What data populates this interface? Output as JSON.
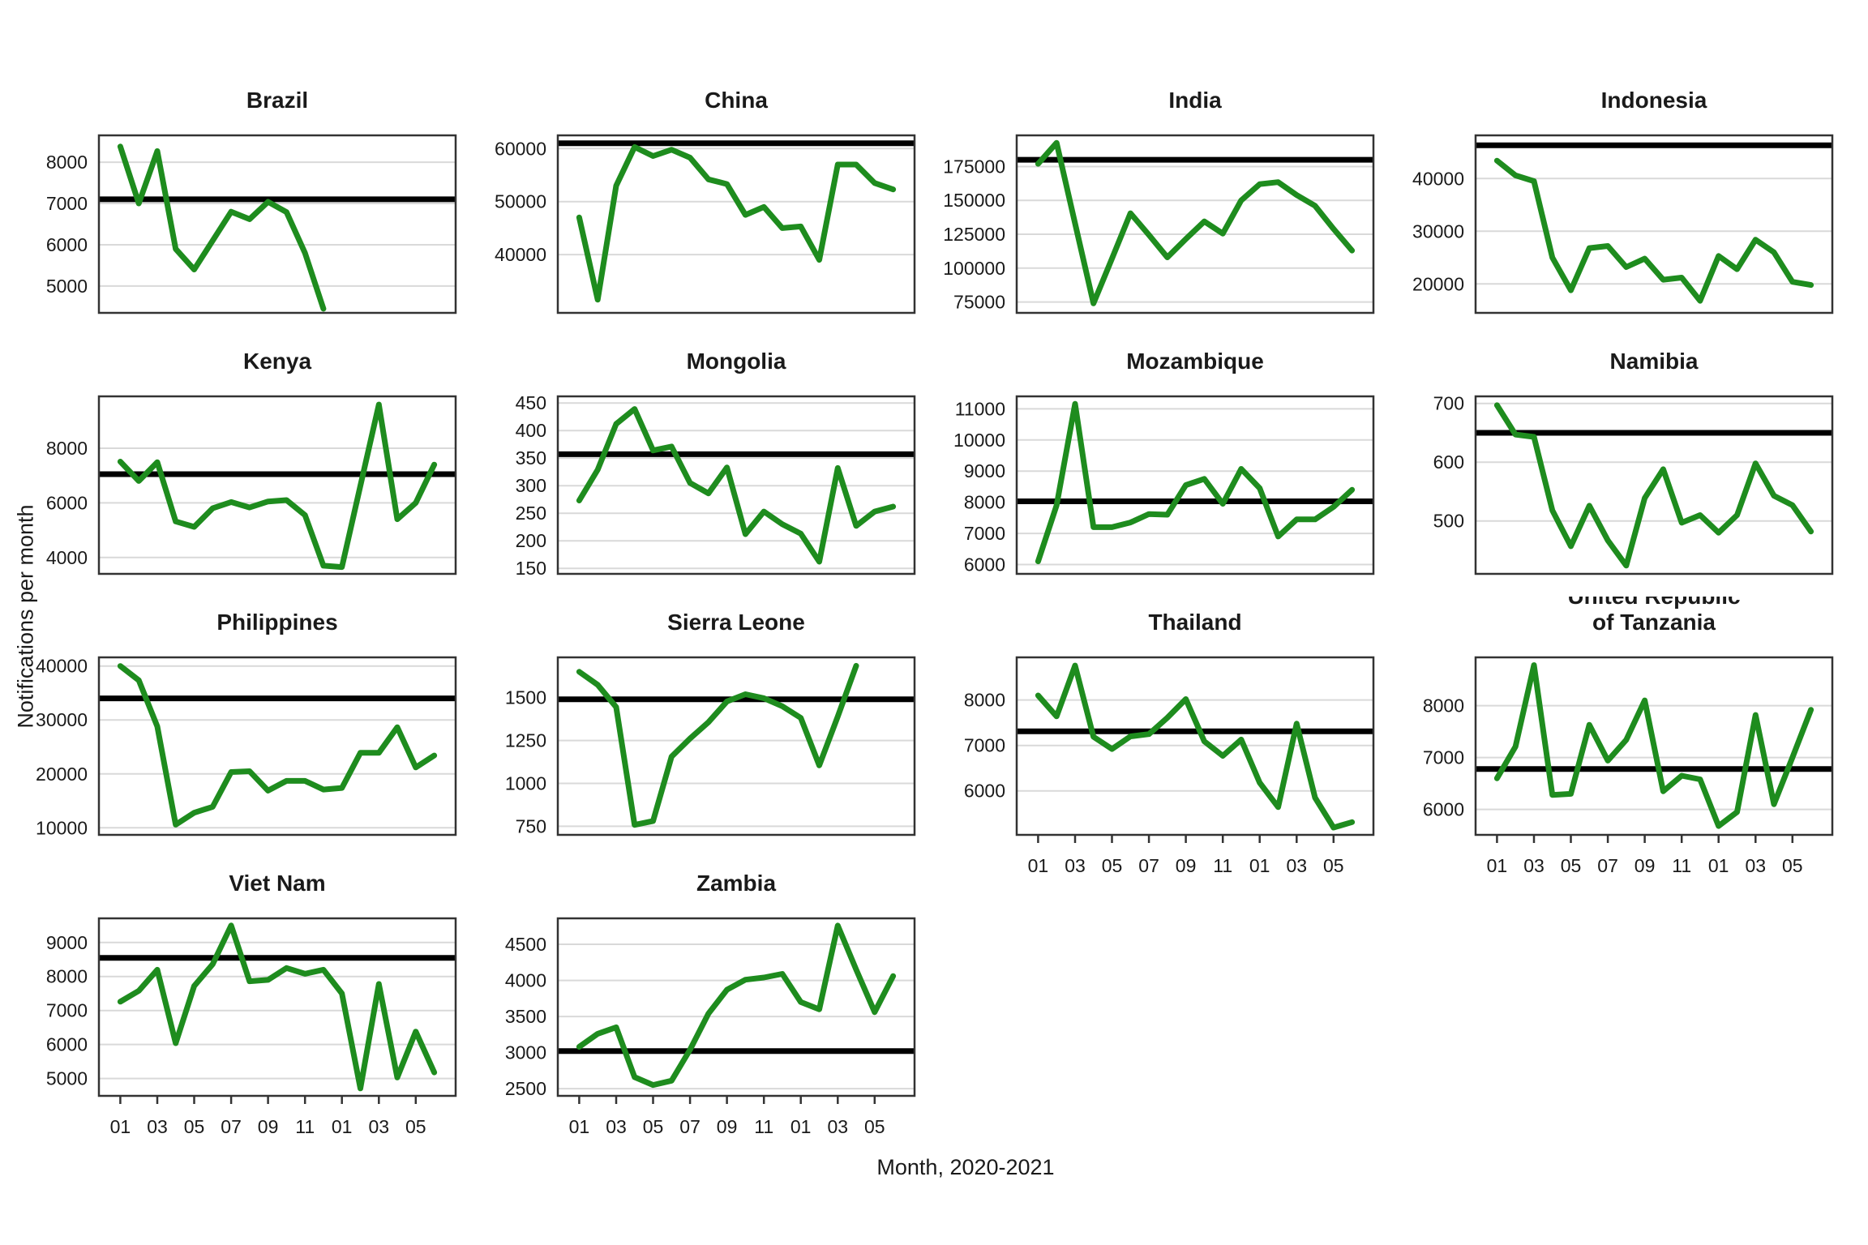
{
  "figure": {
    "x_axis_title": "Month, 2020-2021",
    "y_axis_title": "Notifications per month",
    "colors": {
      "line": "#1e8c1e",
      "reference_line": "#000000",
      "gridline": "#d9d9d9",
      "panel_border": "#333333",
      "text": "#1a1a1a"
    }
  },
  "chart_data": {
    "type": "line",
    "layout_hint": "4-column faceted small multiples, shared x = months Jan 2020 - Jun 2021, black horizontal reference line per panel, grid on (horizontal major gridlines only)",
    "x_tick_labels": [
      "01",
      "03",
      "05",
      "07",
      "09",
      "11",
      "01",
      "03",
      "05"
    ],
    "x_tick_month_indices": [
      0,
      2,
      4,
      6,
      8,
      10,
      12,
      14,
      16
    ],
    "n_months": 18,
    "panels": [
      {
        "title_lines": [
          "Brazil"
        ],
        "ylim": [
          4350,
          8650
        ],
        "yticks": [
          5000,
          6000,
          7000,
          8000
        ],
        "reference": 7100,
        "x_axis": false,
        "values": [
          8380,
          7000,
          8270,
          5900,
          5400,
          6100,
          6800,
          6620,
          7040,
          6790,
          5800,
          4450
        ]
      },
      {
        "title_lines": [
          "China"
        ],
        "ylim": [
          29000,
          62500
        ],
        "yticks": [
          40000,
          50000,
          60000
        ],
        "reference": 61000,
        "x_axis": false,
        "values": [
          47000,
          31500,
          53000,
          60300,
          58600,
          59800,
          58300,
          54200,
          53300,
          47500,
          49000,
          45000,
          45300,
          39000,
          57000,
          57000,
          53500,
          52300
        ]
      },
      {
        "title_lines": [
          "India"
        ],
        "ylim": [
          67000,
          198000
        ],
        "yticks": [
          75000,
          100000,
          125000,
          150000,
          175000
        ],
        "reference": 180000,
        "x_axis": false,
        "values": [
          177000,
          192500,
          133000,
          74000,
          107000,
          140500,
          124500,
          108000,
          121500,
          134500,
          125500,
          150000,
          162000,
          163500,
          154000,
          146000,
          129000,
          113000
        ]
      },
      {
        "title_lines": [
          "Indonesia"
        ],
        "ylim": [
          14500,
          48200
        ],
        "yticks": [
          20000,
          30000,
          40000
        ],
        "reference": 46300,
        "x_axis": false,
        "values": [
          43400,
          40600,
          39500,
          25000,
          18800,
          26800,
          27200,
          23200,
          24800,
          20800,
          21200,
          16800,
          25300,
          22800,
          28400,
          26000,
          20400,
          19800
        ]
      },
      {
        "title_lines": [
          "Kenya"
        ],
        "ylim": [
          3400,
          9900
        ],
        "yticks": [
          4000,
          6000,
          8000
        ],
        "reference": 7050,
        "x_axis": false,
        "values": [
          7510,
          6800,
          7490,
          5320,
          5120,
          5800,
          6030,
          5830,
          6050,
          6100,
          5550,
          3700,
          3650,
          6625,
          9600,
          5400,
          6000,
          7400
        ]
      },
      {
        "title_lines": [
          "Mongolia"
        ],
        "ylim": [
          140,
          462
        ],
        "yticks": [
          150,
          200,
          250,
          300,
          350,
          400,
          450
        ],
        "reference": 357,
        "x_axis": false,
        "values": [
          273,
          329,
          412,
          439,
          364,
          371,
          305,
          286,
          333,
          212,
          253,
          230,
          213,
          162,
          332,
          227,
          253,
          262
        ]
      },
      {
        "title_lines": [
          "Mozambique"
        ],
        "ylim": [
          5700,
          11400
        ],
        "yticks": [
          6000,
          7000,
          8000,
          9000,
          10000,
          11000
        ],
        "reference": 8030,
        "x_axis": false,
        "values": [
          6100,
          7900,
          11160,
          7200,
          7200,
          7350,
          7620,
          7600,
          8550,
          8750,
          7950,
          9070,
          8450,
          6900,
          7450,
          7450,
          7850,
          8400
        ]
      },
      {
        "title_lines": [
          "Namibia"
        ],
        "ylim": [
          410,
          712
        ],
        "yticks": [
          500,
          600,
          700
        ],
        "reference": 650,
        "x_axis": false,
        "values": [
          697,
          647,
          643,
          518,
          457,
          526,
          467,
          424,
          539,
          588,
          497,
          510,
          480,
          510,
          598,
          543,
          527,
          482
        ]
      },
      {
        "title_lines": [
          "Philippines"
        ],
        "ylim": [
          8700,
          41600
        ],
        "yticks": [
          10000,
          20000,
          30000,
          40000
        ],
        "reference": 34000,
        "x_axis": false,
        "values": [
          40000,
          37350,
          28800,
          10600,
          12800,
          13900,
          20350,
          20500,
          16900,
          18700,
          18700,
          17100,
          17400,
          23900,
          23900,
          28650,
          21200,
          23400
        ]
      },
      {
        "title_lines": [
          "Sierra Leone"
        ],
        "ylim": [
          700,
          1735
        ],
        "yticks": [
          750,
          1000,
          1250,
          1500
        ],
        "reference": 1490,
        "x_axis": false,
        "values": [
          1651,
          1575,
          1445,
          758,
          781,
          1156,
          1262,
          1357,
          1478,
          1520,
          1497,
          1450,
          1382,
          1105,
          1390,
          1686
        ]
      },
      {
        "title_lines": [
          "Thailand"
        ],
        "ylim": [
          5030,
          8940
        ],
        "yticks": [
          6000,
          7000,
          8000
        ],
        "reference": 7310,
        "x_axis": true,
        "values": [
          8100,
          7640,
          8760,
          7190,
          6920,
          7200,
          7250,
          7610,
          8020,
          7090,
          6770,
          7130,
          6180,
          5640,
          7480,
          5850,
          5190,
          5310
        ]
      },
      {
        "title_lines": [
          "United Republic",
          "of Tanzania"
        ],
        "ylim": [
          5510,
          8930
        ],
        "yticks": [
          6000,
          7000,
          8000
        ],
        "reference": 6780,
        "x_axis": true,
        "values": [
          6600,
          7210,
          8780,
          6280,
          6300,
          7630,
          6940,
          7340,
          8100,
          6350,
          6650,
          6580,
          5680,
          5950,
          7820,
          6100,
          7000,
          7920
        ]
      },
      {
        "title_lines": [
          "Viet Nam"
        ],
        "ylim": [
          4490,
          9710
        ],
        "yticks": [
          5000,
          6000,
          7000,
          8000,
          9000
        ],
        "reference": 8550,
        "x_axis": true,
        "values": [
          7260,
          7580,
          8200,
          6040,
          7720,
          8360,
          9500,
          7860,
          7900,
          8250,
          8080,
          8200,
          7500,
          4710,
          7780,
          5030,
          6380,
          5180
        ]
      },
      {
        "title_lines": [
          "Zambia"
        ],
        "ylim": [
          2400,
          4860
        ],
        "yticks": [
          2500,
          3000,
          3500,
          4000,
          4500
        ],
        "reference": 3020,
        "x_axis": true,
        "values": [
          3080,
          3260,
          3350,
          2660,
          2550,
          2610,
          3040,
          3540,
          3870,
          4010,
          4040,
          4090,
          3700,
          3600,
          4760,
          4150,
          3560,
          4060
        ]
      }
    ]
  }
}
